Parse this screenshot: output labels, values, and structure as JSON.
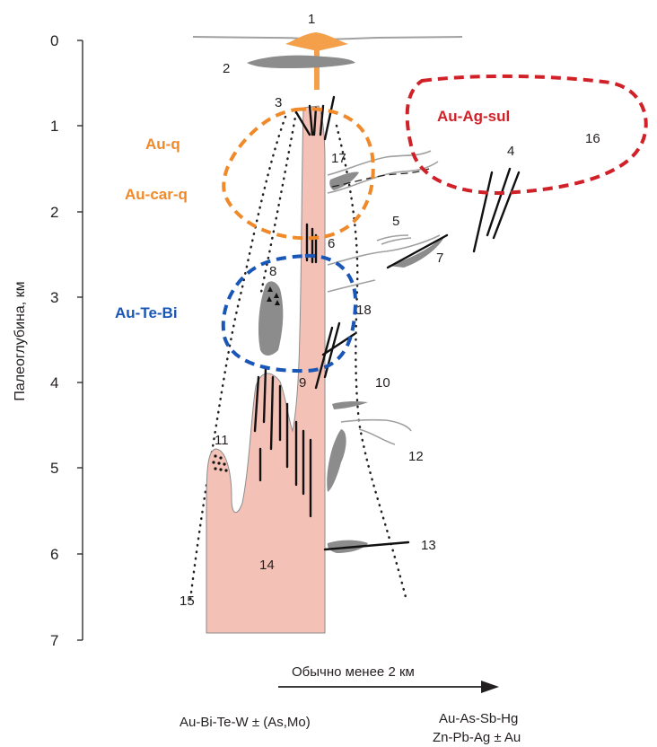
{
  "axis": {
    "title": "Палеоглубина, км",
    "ticks": [
      "0",
      "1",
      "2",
      "3",
      "4",
      "5",
      "6",
      "7"
    ]
  },
  "numbers": {
    "n1": "1",
    "n2": "2",
    "n3": "3",
    "n4": "4",
    "n5": "5",
    "n6": "6",
    "n7": "7",
    "n8": "8",
    "n9": "9",
    "n10": "10",
    "n11": "11",
    "n12": "12",
    "n13": "13",
    "n14": "14",
    "n15": "15",
    "n16": "16",
    "n17": "17",
    "n18": "18"
  },
  "zones": {
    "au_q": "Au-q",
    "au_car_q": "Au-car-q",
    "au_te_bi": "Au-Te-Bi",
    "au_ag_sul": "Au-Ag-sul"
  },
  "bottom": {
    "arrow_label": "Обычно менее 2 км",
    "left_assoc": "Au-Bi-Te-W ± (As,Mo)",
    "right_assoc_line1": "Au-As-Sb-Hg",
    "right_assoc_line2": "Zn-Pb-Ag ± Au"
  },
  "colors": {
    "intrusion": "#f4c1b6",
    "gray_body": "#8c8c8c",
    "orange_zone": "#f0892a",
    "blue_zone": "#1a56b5",
    "red_zone": "#d02128",
    "volcano": "#f4a04a"
  }
}
